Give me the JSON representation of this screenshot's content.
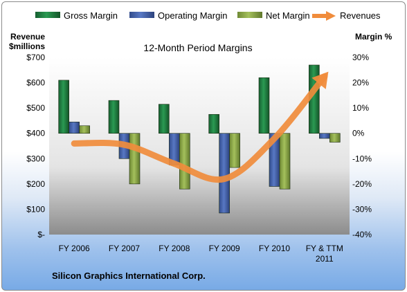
{
  "chart_data": {
    "type": "bar",
    "title": "12-Month Period Margins",
    "left_axis": {
      "label_line1": "Revenue",
      "label_line2": "$millions",
      "min": 0,
      "max": 700,
      "step": 100,
      "tick_labels": [
        "$-",
        "$100",
        "$200",
        "$300",
        "$400",
        "$500",
        "$600",
        "$700"
      ]
    },
    "right_axis": {
      "label": "Margin %",
      "min": -40,
      "max": 30,
      "step": 10,
      "tick_labels": [
        "-40%",
        "-30%",
        "-20%",
        "-10%",
        "0%",
        "10%",
        "20%",
        "30%"
      ]
    },
    "categories": [
      {
        "line1": "FY 2006",
        "line2": ""
      },
      {
        "line1": "FY 2007",
        "line2": ""
      },
      {
        "line1": "FY 2008",
        "line2": ""
      },
      {
        "line1": "FY 2009",
        "line2": ""
      },
      {
        "line1": "FY 2010",
        "line2": ""
      },
      {
        "line1": "FY & TTM",
        "line2": "2011"
      }
    ],
    "series": [
      {
        "name": "Gross Margin",
        "type": "bar",
        "axis": "right",
        "color": "#1e7a40",
        "values": [
          21,
          13,
          11.5,
          7.5,
          22,
          27
        ]
      },
      {
        "name": "Operating Margin",
        "type": "bar",
        "axis": "right",
        "color": "#3f5fa8",
        "values": [
          4.5,
          -10,
          -12.5,
          -31.5,
          -21,
          -2
        ]
      },
      {
        "name": "Net Margin",
        "type": "bar",
        "axis": "right",
        "color": "#8aa646",
        "values": [
          3,
          -20,
          -22,
          -13.5,
          -22,
          -3.5
        ]
      },
      {
        "name": "Revenues",
        "type": "line",
        "axis": "left",
        "color": "#f08c3c",
        "values": [
          360,
          355,
          280,
          220,
          380,
          625
        ]
      }
    ],
    "grid": false,
    "legend_position": "top"
  },
  "footer": {
    "company": "Silicon Graphics International Corp."
  }
}
